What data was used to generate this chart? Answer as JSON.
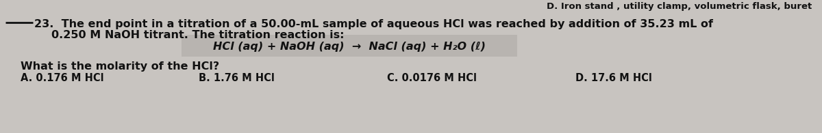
{
  "bg_color": "#c8c4c0",
  "question_number": "23.",
  "question_text_line1": "The end point in a titration of a 50.00-mL sample of aqueous HCl was reached by addition of 35.23 mL of",
  "question_text_line2": "0.250 M NaOH titrant. The titration reaction is:",
  "equation": "HCl (aq) + NaOH (aq)  →  NaCl (aq) + H₂O (ℓ)",
  "sub_question": "What is the molarity of the HCl?",
  "answer_A": "A. 0.176 M HCl",
  "answer_B": "B. 1.76 M HCl",
  "answer_C": "C. 0.0176 M HCl",
  "answer_D": "D. 17.6 M HCl",
  "header_right": "D. Iron stand , utility clamp, volumetric flask, buret",
  "text_color": "#111111",
  "equation_box_color": "#b8b4b0",
  "font_size_main": 11.5,
  "font_size_eq": 11.5,
  "font_size_answers": 10.5,
  "font_size_header": 9.5
}
